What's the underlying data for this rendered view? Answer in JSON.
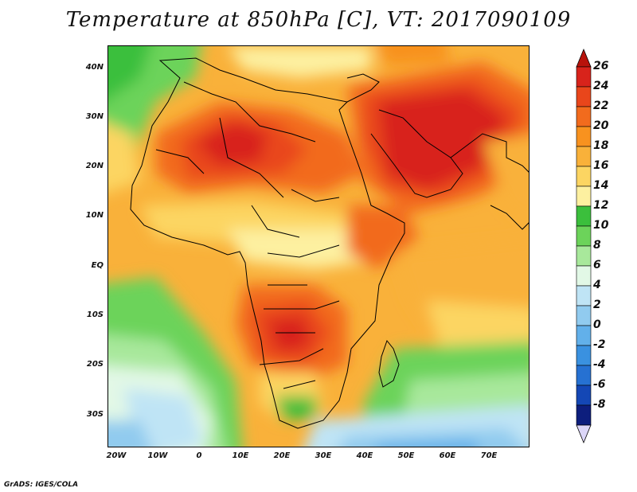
{
  "title": "Temperature at 850hPa [C], VT: 2017090109",
  "credit": "GrADS: IGES/COLA",
  "map": {
    "lat_labels": [
      "40N",
      "30N",
      "20N",
      "10N",
      "EQ",
      "10S",
      "20S",
      "30S"
    ],
    "lon_labels": [
      "20W",
      "10W",
      "0",
      "10E",
      "20E",
      "30E",
      "40E",
      "50E",
      "60E",
      "70E"
    ]
  },
  "colorbar": {
    "labels": [
      "26",
      "24",
      "22",
      "20",
      "18",
      "16",
      "14",
      "12",
      "10",
      "8",
      "6",
      "4",
      "2",
      "0",
      "-2",
      "-4",
      "-6",
      "-8"
    ],
    "colors": [
      "#d8231b",
      "#e9461b",
      "#f26b1d",
      "#f8921f",
      "#f9b13a",
      "#fcd562",
      "#fdf0a0",
      "#3bbf3c",
      "#6cd35a",
      "#a8e89b",
      "#e2f8e6",
      "#bfe4f5",
      "#91cbef",
      "#62b0ea",
      "#3a91e0",
      "#2671d2",
      "#1447b5",
      "#0d1e7d"
    ],
    "top_arrow_color": "#b8130b",
    "bottom_arrow_color": "#dcd6f8"
  }
}
